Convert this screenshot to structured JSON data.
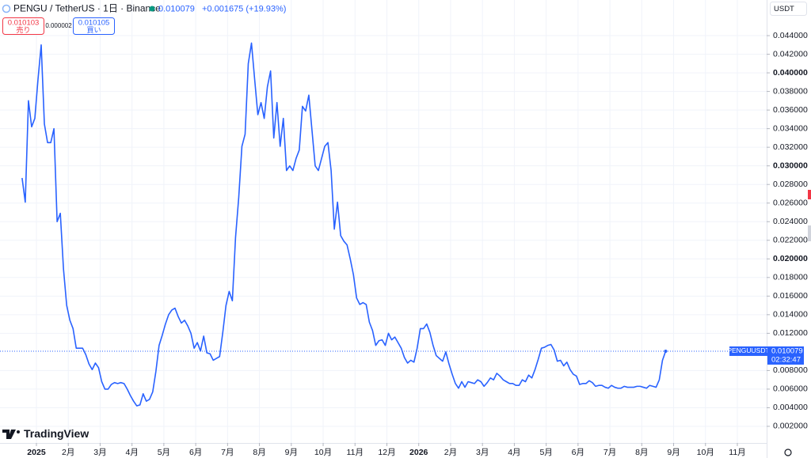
{
  "chart_data": {
    "type": "line",
    "title": "PENGU / TetherUS · 1日 · Binance",
    "change": "+0.001675 (+19.93%)",
    "sell": {
      "price": "0.010103",
      "label": "売り"
    },
    "spread": "0.000002",
    "buy": {
      "price": "0.010105",
      "label": "買い"
    },
    "currency": "USDT",
    "countdown": "02:32:47",
    "brand": "TradingView",
    "grid": true,
    "xlim": [
      -1.143,
      22.92
    ],
    "xticks": [
      {
        "value": 0,
        "label": "2025"
      },
      {
        "value": 1,
        "label": "2月"
      },
      {
        "value": 2,
        "label": "3月"
      },
      {
        "value": 3,
        "label": "4月"
      },
      {
        "value": 4,
        "label": "5月"
      },
      {
        "value": 5,
        "label": "6月"
      },
      {
        "value": 6,
        "label": "7月"
      },
      {
        "value": 7,
        "label": "8月"
      },
      {
        "value": 8,
        "label": "9月"
      },
      {
        "value": 9,
        "label": "10月"
      },
      {
        "value": 10,
        "label": "11月"
      },
      {
        "value": 11,
        "label": "12月"
      },
      {
        "value": 12,
        "label": "2026"
      },
      {
        "value": 13,
        "label": "2月"
      },
      {
        "value": 14,
        "label": "3月"
      },
      {
        "value": 15,
        "label": "4月"
      },
      {
        "value": 16,
        "label": "5月"
      },
      {
        "value": 17,
        "label": "6月"
      },
      {
        "value": 18,
        "label": "7月"
      },
      {
        "value": 19,
        "label": "8月"
      },
      {
        "value": 20,
        "label": "9月"
      },
      {
        "value": 21,
        "label": "10月"
      },
      {
        "value": 22,
        "label": "11月"
      }
    ],
    "ylim": [
      0.00021,
      0.04613
    ],
    "yticks": [
      {
        "value": 0.002,
        "label": "0.002000"
      },
      {
        "value": 0.004,
        "label": "0.004000"
      },
      {
        "value": 0.006,
        "label": "0.006000"
      },
      {
        "value": 0.008,
        "label": "0.008000"
      },
      {
        "value": 0.012,
        "label": "0.012000"
      },
      {
        "value": 0.014,
        "label": "0.014000"
      },
      {
        "value": 0.016,
        "label": "0.016000"
      },
      {
        "value": 0.018,
        "label": "0.018000"
      },
      {
        "value": 0.02,
        "label": "0.020000"
      },
      {
        "value": 0.022,
        "label": "0.022000"
      },
      {
        "value": 0.024,
        "label": "0.024000"
      },
      {
        "value": 0.026,
        "label": "0.026000"
      },
      {
        "value": 0.028,
        "label": "0.028000"
      },
      {
        "value": 0.03,
        "label": "0.030000"
      },
      {
        "value": 0.032,
        "label": "0.032000"
      },
      {
        "value": 0.034,
        "label": "0.034000"
      },
      {
        "value": 0.036,
        "label": "0.036000"
      },
      {
        "value": 0.038,
        "label": "0.038000"
      },
      {
        "value": 0.04,
        "label": "0.040000"
      },
      {
        "value": 0.042,
        "label": "0.042000"
      },
      {
        "value": 0.044,
        "label": "0.044000"
      }
    ],
    "x": [
      -0.45,
      -0.35,
      -0.25,
      -0.15,
      -0.05,
      0.05,
      0.15,
      0.25,
      0.35,
      0.45,
      0.55,
      0.65,
      0.75,
      0.85,
      0.95,
      1.05,
      1.15,
      1.25,
      1.35,
      1.45,
      1.55,
      1.65,
      1.75,
      1.85,
      1.95,
      2.05,
      2.15,
      2.25,
      2.35,
      2.45,
      2.55,
      2.65,
      2.75,
      2.85,
      2.95,
      3.05,
      3.15,
      3.25,
      3.35,
      3.45,
      3.55,
      3.65,
      3.75,
      3.85,
      3.95,
      4.05,
      4.15,
      4.25,
      4.35,
      4.45,
      4.55,
      4.65,
      4.75,
      4.85,
      4.95,
      5.05,
      5.15,
      5.25,
      5.35,
      5.45,
      5.55,
      5.65,
      5.75,
      5.85,
      5.95,
      6.05,
      6.15,
      6.25,
      6.35,
      6.45,
      6.55,
      6.65,
      6.75,
      6.85,
      6.95,
      7.05,
      7.15,
      7.25,
      7.35,
      7.45,
      7.55,
      7.65,
      7.75,
      7.85,
      7.95,
      8.05,
      8.15,
      8.25,
      8.35,
      8.45,
      8.55,
      8.65,
      8.75,
      8.85,
      8.95,
      9.05,
      9.15,
      9.25,
      9.35,
      9.45,
      9.55,
      9.65,
      9.75,
      9.85,
      9.95,
      10.05,
      10.15,
      10.25,
      10.35,
      10.45,
      10.55,
      10.65,
      10.75,
      10.85,
      10.95,
      11.05,
      11.15,
      11.25,
      11.35,
      11.45,
      11.55,
      11.65,
      11.75,
      11.85,
      11.95,
      12.05,
      12.15,
      12.25,
      12.35,
      12.45,
      12.55,
      12.65,
      12.75,
      12.85,
      12.95,
      13.05,
      13.15,
      13.25,
      13.35,
      13.45,
      13.55,
      13.65,
      13.75,
      13.85,
      13.95,
      14.05,
      14.15,
      14.25,
      14.35,
      14.45,
      14.55,
      14.65,
      14.75,
      14.85,
      14.95,
      15.05,
      15.15,
      15.25,
      15.35,
      15.45,
      15.55,
      15.65,
      15.75,
      15.85,
      15.95,
      16.05,
      16.15,
      16.25,
      16.35,
      16.45,
      16.55,
      16.65,
      16.75,
      16.85,
      16.95,
      17.05,
      17.15,
      17.25,
      17.35,
      17.45,
      17.55,
      17.65,
      17.75,
      17.85,
      17.95,
      18.05,
      18.15,
      18.25,
      18.35,
      18.45,
      18.55,
      18.65,
      18.75,
      18.85,
      18.95,
      19.05,
      19.15,
      19.25,
      19.35,
      19.45,
      19.55,
      19.65,
      19.75
    ],
    "series": [
      {
        "name": "PENGUUSDT",
        "color": "#2962ff",
        "values": [
          0.0287,
          0.0261,
          0.037,
          0.0342,
          0.0351,
          0.0393,
          0.043,
          0.0345,
          0.0325,
          0.0325,
          0.034,
          0.024,
          0.0249,
          0.0189,
          0.015,
          0.0134,
          0.0125,
          0.0104,
          0.0104,
          0.0104,
          0.0097,
          0.0087,
          0.0081,
          0.0088,
          0.0083,
          0.0068,
          0.006,
          0.006,
          0.0065,
          0.0067,
          0.0066,
          0.0067,
          0.0066,
          0.006,
          0.0053,
          0.0047,
          0.0042,
          0.0043,
          0.0055,
          0.0047,
          0.0049,
          0.0057,
          0.0079,
          0.0107,
          0.0118,
          0.013,
          0.014,
          0.0145,
          0.0147,
          0.0138,
          0.0131,
          0.0134,
          0.0128,
          0.012,
          0.0104,
          0.011,
          0.0101,
          0.0117,
          0.0099,
          0.0098,
          0.0091,
          0.0093,
          0.0095,
          0.0121,
          0.015,
          0.0165,
          0.0155,
          0.0223,
          0.0266,
          0.0321,
          0.0334,
          0.041,
          0.0432,
          0.0393,
          0.0355,
          0.0368,
          0.0351,
          0.0385,
          0.0402,
          0.033,
          0.0368,
          0.0321,
          0.0351,
          0.0295,
          0.03,
          0.0295,
          0.0308,
          0.0317,
          0.0364,
          0.0359,
          0.0376,
          0.0338,
          0.03,
          0.0295,
          0.0308,
          0.0321,
          0.0325,
          0.0295,
          0.0232,
          0.0261,
          0.0225,
          0.0219,
          0.0215,
          0.02,
          0.0183,
          0.0158,
          0.0151,
          0.0153,
          0.0151,
          0.0132,
          0.0123,
          0.0107,
          0.0112,
          0.0113,
          0.0107,
          0.012,
          0.0113,
          0.0116,
          0.011,
          0.0104,
          0.0094,
          0.0088,
          0.0091,
          0.0089,
          0.0104,
          0.0125,
          0.0125,
          0.013,
          0.0121,
          0.0107,
          0.0096,
          0.0093,
          0.009,
          0.01,
          0.0087,
          0.0076,
          0.0066,
          0.0061,
          0.0068,
          0.0062,
          0.0068,
          0.0067,
          0.0066,
          0.007,
          0.0068,
          0.0063,
          0.0067,
          0.0072,
          0.007,
          0.0077,
          0.0074,
          0.007,
          0.0068,
          0.0066,
          0.0066,
          0.0064,
          0.0064,
          0.007,
          0.0068,
          0.0075,
          0.0072,
          0.0081,
          0.0092,
          0.0104,
          0.0105,
          0.0107,
          0.0108,
          0.0102,
          0.009,
          0.0091,
          0.0085,
          0.0089,
          0.0081,
          0.0076,
          0.0074,
          0.0065,
          0.0066,
          0.0066,
          0.0069,
          0.0067,
          0.0063,
          0.0064,
          0.0064,
          0.0062,
          0.0061,
          0.0064,
          0.0062,
          0.0061,
          0.0061,
          0.0063,
          0.0062,
          0.0062,
          0.0062,
          0.0063,
          0.0063,
          0.0062,
          0.0061,
          0.0064,
          0.0063,
          0.0062,
          0.007,
          0.0091,
          0.010079
        ]
      }
    ]
  }
}
